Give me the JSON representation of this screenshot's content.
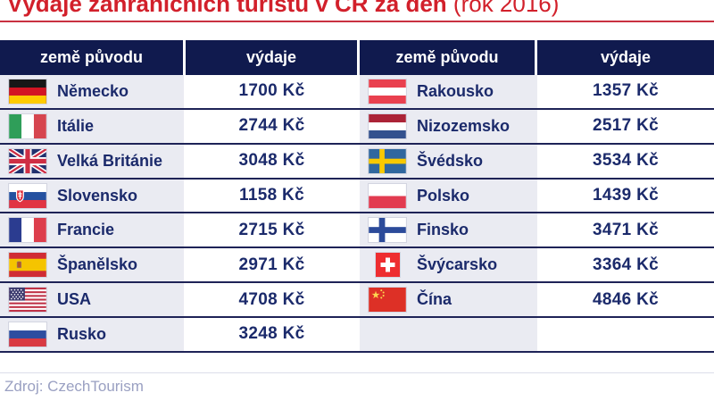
{
  "title": {
    "main": "Výdaje zahraničních turistů v ČR za den",
    "suffix": " (rok 2016)"
  },
  "table": {
    "headers": [
      {
        "label": "země původu"
      },
      {
        "label": "výdaje"
      },
      {
        "label": "země původu"
      },
      {
        "label": "výdaje"
      }
    ],
    "rows": [
      {
        "left": {
          "flag": "germany-flag-icon",
          "country": "Německo",
          "value": "1700 Kč"
        },
        "right": {
          "flag": "austria-flag-icon",
          "country": "Rakousko",
          "value": "1357 Kč"
        }
      },
      {
        "left": {
          "flag": "italy-flag-icon",
          "country": "Itálie",
          "value": "2744 Kč"
        },
        "right": {
          "flag": "netherlands-flag-icon",
          "country": "Nizozemsko",
          "value": "2517 Kč"
        }
      },
      {
        "left": {
          "flag": "uk-flag-icon",
          "country": "Velká Británie",
          "value": "3048 Kč"
        },
        "right": {
          "flag": "sweden-flag-icon",
          "country": "Švédsko",
          "value": "3534 Kč"
        }
      },
      {
        "left": {
          "flag": "slovakia-flag-icon",
          "country": "Slovensko",
          "value": "1158 Kč"
        },
        "right": {
          "flag": "poland-flag-icon",
          "country": "Polsko",
          "value": "1439 Kč"
        }
      },
      {
        "left": {
          "flag": "france-flag-icon",
          "country": "Francie",
          "value": "2715 Kč"
        },
        "right": {
          "flag": "finland-flag-icon",
          "country": "Finsko",
          "value": "3471 Kč"
        }
      },
      {
        "left": {
          "flag": "spain-flag-icon",
          "country": "Španělsko",
          "value": "2971 Kč"
        },
        "right": {
          "flag": "switzerland-flag-icon",
          "country": "Švýcarsko",
          "value": "3364 Kč"
        }
      },
      {
        "left": {
          "flag": "usa-flag-icon",
          "country": "USA",
          "value": "4708 Kč"
        },
        "right": {
          "flag": "china-flag-icon",
          "country": "Čína",
          "value": "4846 Kč"
        }
      },
      {
        "left": {
          "flag": "russia-flag-icon",
          "country": "Rusko",
          "value": "3248 Kč"
        },
        "right": {
          "flag": "",
          "country": "",
          "value": ""
        }
      }
    ]
  },
  "source": "Zdroj: CzechTourism",
  "colors": {
    "accent_red": "#d2202b",
    "rule_red": "#c93140",
    "header_navy": "#101a4e",
    "text_navy": "#1b2a6b",
    "row_line": "#1e2357",
    "cell_gray": "#eaebf2",
    "source_text": "#9aa0c2",
    "source_line": "#dcdde9"
  },
  "chart_data": {
    "type": "table",
    "title": "Výdaje zahraničních turistů v ČR za den (rok 2016)",
    "columns": [
      "země původu",
      "výdaje"
    ],
    "unit": "Kč",
    "rows": [
      [
        "Německo",
        1700
      ],
      [
        "Itálie",
        2744
      ],
      [
        "Velká Británie",
        3048
      ],
      [
        "Slovensko",
        1158
      ],
      [
        "Francie",
        2715
      ],
      [
        "Španělsko",
        2971
      ],
      [
        "USA",
        4708
      ],
      [
        "Rusko",
        3248
      ],
      [
        "Rakousko",
        1357
      ],
      [
        "Nizozemsko",
        2517
      ],
      [
        "Švédsko",
        3534
      ],
      [
        "Polsko",
        1439
      ],
      [
        "Finsko",
        3471
      ],
      [
        "Švýcarsko",
        3364
      ],
      [
        "Čína",
        4846
      ]
    ],
    "source": "Zdroj: CzechTourism"
  }
}
